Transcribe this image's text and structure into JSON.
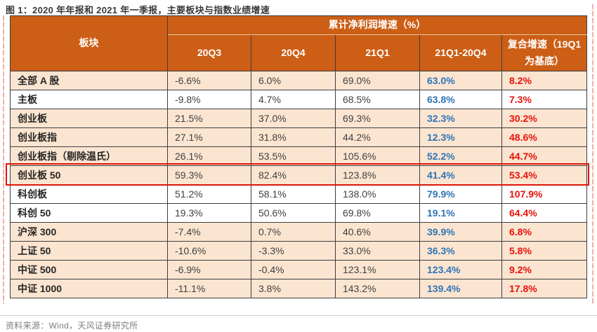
{
  "title": "图 1：2020 年年报和 2021 年一季报，主要板块与指数业绩增速",
  "source_note": "资料来源：Wind，天风证券研究所",
  "table": {
    "group_header": "累计净利润增速（%）",
    "columns": [
      "板块",
      "20Q3",
      "20Q4",
      "21Q1",
      "21Q1-20Q4",
      "复合增速（19Q1 为基底）"
    ],
    "rows": [
      {
        "cells": [
          "全部 A 股",
          "-6.6%",
          "6.0%",
          "69.0%",
          "63.0%",
          "8.2%"
        ],
        "bg": "peach",
        "highlight": false
      },
      {
        "cells": [
          "主板",
          "-9.8%",
          "4.7%",
          "68.5%",
          "63.8%",
          "7.3%"
        ],
        "bg": "white",
        "highlight": false
      },
      {
        "cells": [
          "创业板",
          "21.5%",
          "37.0%",
          "69.3%",
          "32.3%",
          "30.2%"
        ],
        "bg": "peach",
        "highlight": false
      },
      {
        "cells": [
          "创业板指",
          "27.1%",
          "31.8%",
          "44.2%",
          "12.3%",
          "48.6%"
        ],
        "bg": "peach",
        "highlight": false
      },
      {
        "cells": [
          "创业板指（剔除温氏）",
          "26.1%",
          "53.5%",
          "105.6%",
          "52.2%",
          "44.7%"
        ],
        "bg": "peach",
        "highlight": false
      },
      {
        "cells": [
          "创业板 50",
          "59.3%",
          "82.4%",
          "123.8%",
          "41.4%",
          "53.4%"
        ],
        "bg": "peach",
        "highlight": true
      },
      {
        "cells": [
          "科创板",
          "51.2%",
          "58.1%",
          "138.0%",
          "79.9%",
          "107.9%"
        ],
        "bg": "white",
        "highlight": false
      },
      {
        "cells": [
          "科创 50",
          "19.3%",
          "50.6%",
          "69.8%",
          "19.1%",
          "64.4%"
        ],
        "bg": "white",
        "highlight": false
      },
      {
        "cells": [
          "沪深 300",
          "-7.4%",
          "0.7%",
          "40.6%",
          "39.9%",
          "6.8%"
        ],
        "bg": "peach",
        "highlight": false
      },
      {
        "cells": [
          "上证 50",
          "-10.6%",
          "-3.3%",
          "33.0%",
          "36.3%",
          "5.8%"
        ],
        "bg": "peach",
        "highlight": false
      },
      {
        "cells": [
          "中证 500",
          "-6.9%",
          "-0.4%",
          "123.1%",
          "123.4%",
          "9.2%"
        ],
        "bg": "peach",
        "highlight": false
      },
      {
        "cells": [
          "中证 1000",
          "-11.1%",
          "3.8%",
          "143.2%",
          "139.4%",
          "17.8%"
        ],
        "bg": "peach",
        "highlight": false
      }
    ]
  },
  "colors": {
    "header_bg": "#CC5E15",
    "row_peach": "#FBE5D1",
    "row_white": "#FFFFFF",
    "border": "#3E3E3E",
    "diff_text_blue": "#2E74B5",
    "compound_text_red": "#E8130B",
    "highlight_border_red": "#DE1507",
    "edge_marker_pink": "#F2AEA8"
  }
}
